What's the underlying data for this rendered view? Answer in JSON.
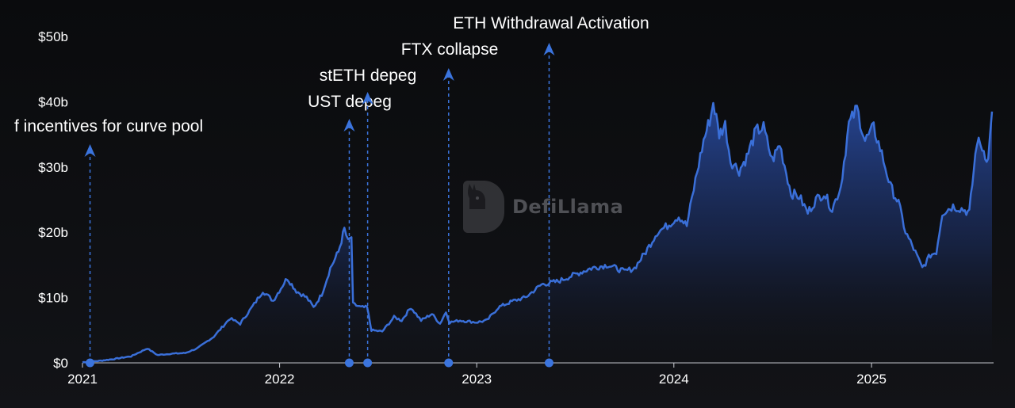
{
  "chart_data": {
    "type": "area",
    "title": "",
    "xlabel": "",
    "ylabel": "",
    "x_range": [
      "2021-01-01",
      "2025-08-15"
    ],
    "ylim": [
      0,
      50
    ],
    "y_unit": "billions USD",
    "y_ticks": [
      "$0",
      "$10b",
      "$20b",
      "$30b",
      "$40b",
      "$50b"
    ],
    "x_ticks": [
      "2021",
      "2022",
      "2023",
      "2024",
      "2025"
    ],
    "grid": false,
    "line_color": "#3a6fd8",
    "series": [
      {
        "points": [
          [
            "2021-01-01",
            0.1
          ],
          [
            "2021-02-01",
            0.3
          ],
          [
            "2021-03-01",
            0.6
          ],
          [
            "2021-04-01",
            1.0
          ],
          [
            "2021-05-01",
            2.2
          ],
          [
            "2021-05-20",
            1.2
          ],
          [
            "2021-06-15",
            1.4
          ],
          [
            "2021-07-10",
            1.5
          ],
          [
            "2021-08-01",
            2.2
          ],
          [
            "2021-09-01",
            4.0
          ],
          [
            "2021-10-01",
            6.8
          ],
          [
            "2021-10-20",
            6.0
          ],
          [
            "2021-11-15",
            9.0
          ],
          [
            "2021-12-01",
            11.0
          ],
          [
            "2021-12-20",
            9.5
          ],
          [
            "2022-01-15",
            13.0
          ],
          [
            "2022-02-01",
            11.0
          ],
          [
            "2022-02-20",
            10.0
          ],
          [
            "2022-03-05",
            8.5
          ],
          [
            "2022-03-20",
            10.5
          ],
          [
            "2022-04-05",
            14.5
          ],
          [
            "2022-04-20",
            17.0
          ],
          [
            "2022-05-01",
            20.5
          ],
          [
            "2022-05-08",
            18.5
          ],
          [
            "2022-05-14",
            19.3
          ],
          [
            "2022-05-17",
            9.0
          ],
          [
            "2022-06-01",
            8.5
          ],
          [
            "2022-06-12",
            8.5
          ],
          [
            "2022-06-20",
            5.0
          ],
          [
            "2022-07-10",
            4.8
          ],
          [
            "2022-08-01",
            7.0
          ],
          [
            "2022-08-15",
            6.5
          ],
          [
            "2022-09-01",
            8.5
          ],
          [
            "2022-09-20",
            6.5
          ],
          [
            "2022-10-10",
            7.5
          ],
          [
            "2022-10-25",
            6.0
          ],
          [
            "2022-11-05",
            7.8
          ],
          [
            "2022-11-12",
            6.2
          ],
          [
            "2022-12-01",
            6.5
          ],
          [
            "2022-12-31",
            6.2
          ],
          [
            "2023-01-20",
            6.5
          ],
          [
            "2023-02-10",
            8.5
          ],
          [
            "2023-03-10",
            9.5
          ],
          [
            "2023-04-01",
            10.0
          ],
          [
            "2023-05-01",
            12.0
          ],
          [
            "2023-06-01",
            12.5
          ],
          [
            "2023-07-01",
            13.5
          ],
          [
            "2023-08-01",
            14.5
          ],
          [
            "2023-09-01",
            15.0
          ],
          [
            "2023-10-01",
            14.0
          ],
          [
            "2023-10-20",
            14.5
          ],
          [
            "2023-11-10",
            17.0
          ],
          [
            "2023-12-01",
            20.0
          ],
          [
            "2023-12-20",
            21.0
          ],
          [
            "2024-01-10",
            22.5
          ],
          [
            "2024-01-25",
            21.0
          ],
          [
            "2024-02-10",
            28.0
          ],
          [
            "2024-02-25",
            34.0
          ],
          [
            "2024-03-10",
            38.0
          ],
          [
            "2024-03-14",
            40.0
          ],
          [
            "2024-03-25",
            35.0
          ],
          [
            "2024-04-05",
            36.5
          ],
          [
            "2024-04-15",
            31.0
          ],
          [
            "2024-05-01",
            29.5
          ],
          [
            "2024-05-15",
            31.5
          ],
          [
            "2024-06-01",
            35.5
          ],
          [
            "2024-06-15",
            36.0
          ],
          [
            "2024-07-01",
            31.0
          ],
          [
            "2024-07-15",
            33.5
          ],
          [
            "2024-08-05",
            26.0
          ],
          [
            "2024-08-20",
            25.5
          ],
          [
            "2024-09-05",
            23.0
          ],
          [
            "2024-09-20",
            25.0
          ],
          [
            "2024-10-05",
            26.0
          ],
          [
            "2024-10-20",
            23.5
          ],
          [
            "2024-11-05",
            27.0
          ],
          [
            "2024-11-20",
            36.5
          ],
          [
            "2024-12-05",
            39.0
          ],
          [
            "2024-12-20",
            34.0
          ],
          [
            "2025-01-05",
            36.0
          ],
          [
            "2025-01-20",
            32.0
          ],
          [
            "2025-02-05",
            27.0
          ],
          [
            "2025-02-20",
            24.5
          ],
          [
            "2025-03-05",
            20.0
          ],
          [
            "2025-03-20",
            17.5
          ],
          [
            "2025-04-05",
            14.5
          ],
          [
            "2025-04-20",
            16.5
          ],
          [
            "2025-05-01",
            17.0
          ],
          [
            "2025-05-12",
            23.0
          ],
          [
            "2025-06-01",
            24.0
          ],
          [
            "2025-06-20",
            23.5
          ],
          [
            "2025-07-01",
            23.0
          ],
          [
            "2025-07-15",
            34.0
          ],
          [
            "2025-07-25",
            33.0
          ],
          [
            "2025-08-05",
            31.0
          ],
          [
            "2025-08-12",
            38.5
          ]
        ]
      }
    ],
    "annotations": [
      {
        "date": "2021-01-15",
        "label": "f incentives for curve pool",
        "label_color": "#ffffff"
      },
      {
        "date": "2022-05-10",
        "label": "UST depeg",
        "label_color": "#ffffff"
      },
      {
        "date": "2022-06-13",
        "label": "stETH depeg",
        "label_color": "#ffffff"
      },
      {
        "date": "2022-11-10",
        "label": "FTX collapse",
        "label_color": "#ffffff"
      },
      {
        "date": "2023-05-15",
        "label": "ETH Withdrawal Activation",
        "label_color": "#ffffff"
      }
    ],
    "annotation_color": "#3b74dd"
  },
  "watermark": {
    "text": "DefiLlama"
  }
}
